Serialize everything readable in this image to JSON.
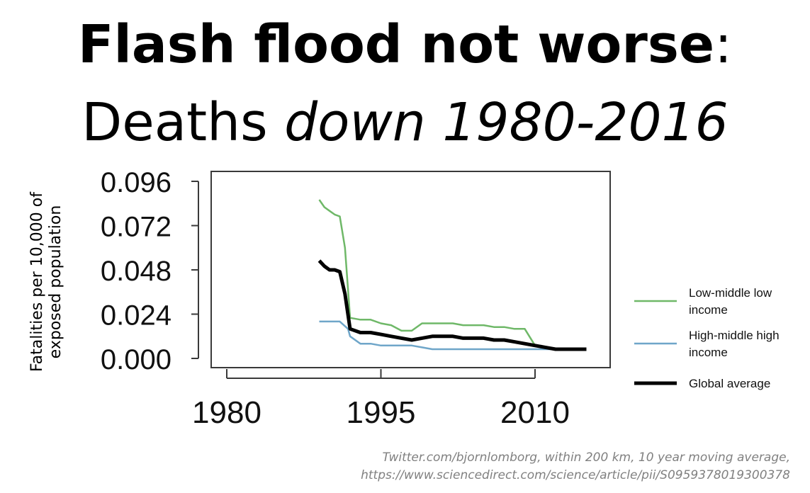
{
  "title": {
    "line1_bold": "Flash flood not worse",
    "line1_rest": ":",
    "line2_plain": "Deaths ",
    "line2_italic": "down 1980-2016"
  },
  "chart_data": {
    "type": "line",
    "ylabel_line1": "Fatalities per 10,000 of",
    "ylabel_line2": "exposed population",
    "xlabel": "",
    "xlim": [
      1980,
      2016
    ],
    "ylim": [
      0,
      0.096
    ],
    "xticks": [
      "1980",
      "1995",
      "2010"
    ],
    "yticks": [
      "0.000",
      "0.024",
      "0.048",
      "0.072",
      "0.096"
    ],
    "legend_position": "right",
    "series": [
      {
        "name": "Low-middle low income",
        "color": "#6fb868",
        "x": [
          1989,
          1989.5,
          1990,
          1990.5,
          1991,
          1991.5,
          1992,
          1993,
          1994,
          1995,
          1996,
          1997,
          1998,
          1999,
          2000,
          2001,
          2002,
          2003,
          2004,
          2005,
          2006,
          2007,
          2008,
          2009,
          2010,
          2011,
          2012,
          2013,
          2014,
          2015
        ],
        "values": [
          0.086,
          0.082,
          0.08,
          0.078,
          0.077,
          0.06,
          0.022,
          0.021,
          0.021,
          0.019,
          0.018,
          0.015,
          0.015,
          0.019,
          0.019,
          0.019,
          0.019,
          0.018,
          0.018,
          0.018,
          0.017,
          0.017,
          0.016,
          0.016,
          0.007,
          0.006,
          0.005,
          0.005,
          0.005,
          0.005
        ]
      },
      {
        "name": "High-middle high income",
        "color": "#6fa6c9",
        "x": [
          1989,
          1990,
          1991,
          1991.8,
          1992,
          1993,
          1994,
          1995,
          1996,
          1997,
          1998,
          1999,
          2000,
          2001,
          2002,
          2003,
          2004,
          2005,
          2006,
          2007,
          2008,
          2009,
          2010,
          2011,
          2012,
          2013,
          2014,
          2015
        ],
        "values": [
          0.02,
          0.02,
          0.02,
          0.016,
          0.012,
          0.008,
          0.008,
          0.007,
          0.007,
          0.007,
          0.007,
          0.006,
          0.005,
          0.005,
          0.005,
          0.005,
          0.005,
          0.005,
          0.005,
          0.005,
          0.005,
          0.005,
          0.005,
          0.005,
          0.005,
          0.005,
          0.005,
          0.005
        ]
      },
      {
        "name": "Global average",
        "color": "#000000",
        "x": [
          1989,
          1989.5,
          1990,
          1990.5,
          1991,
          1991.5,
          1992,
          1993,
          1994,
          1995,
          1996,
          1997,
          1998,
          1999,
          2000,
          2001,
          2002,
          2003,
          2004,
          2005,
          2006,
          2007,
          2008,
          2009,
          2010,
          2011,
          2012,
          2013,
          2014,
          2015
        ],
        "values": [
          0.053,
          0.05,
          0.048,
          0.048,
          0.047,
          0.035,
          0.016,
          0.014,
          0.014,
          0.013,
          0.012,
          0.011,
          0.01,
          0.011,
          0.012,
          0.012,
          0.012,
          0.011,
          0.011,
          0.011,
          0.01,
          0.01,
          0.009,
          0.008,
          0.007,
          0.006,
          0.005,
          0.005,
          0.005,
          0.005
        ]
      }
    ]
  },
  "legend": {
    "items": [
      {
        "line1": "Low-middle low",
        "line2": "income",
        "color": "#6fb868"
      },
      {
        "line1": "High-middle high",
        "line2": "income",
        "color": "#6fa6c9"
      },
      {
        "line1": "Global average",
        "line2": "",
        "color": "#000000"
      }
    ]
  },
  "caption": {
    "line1": "Twitter.com/bjornlomborg, within 200 km, 10 year moving average,",
    "line2": "https://www.sciencedirect.com/science/article/pii/S0959378019300378"
  }
}
